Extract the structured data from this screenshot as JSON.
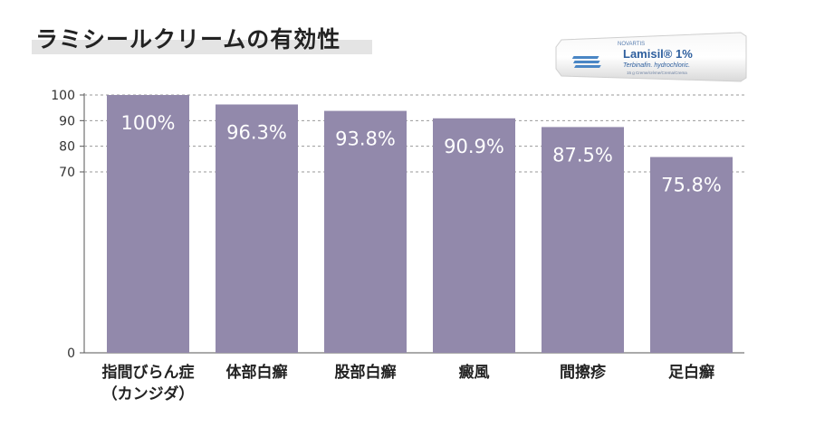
{
  "title": "ラミシールクリームの有効性",
  "product": {
    "brand": "NOVARTIS",
    "name": "Lamisil® 1%",
    "subtitle": "Terbinafin. hydrochloric.",
    "fineprint": "15 g Creme/crème/Crema/Crema"
  },
  "chart_data": {
    "type": "bar",
    "categories": [
      "指間びらん症\n（カンジダ）",
      "体部白癬",
      "股部白癬",
      "癜風",
      "間擦疹",
      "足白癬"
    ],
    "values": [
      100,
      96.3,
      93.8,
      90.9,
      87.5,
      75.8
    ],
    "data_labels": [
      "100%",
      "96.3%",
      "93.8%",
      "90.9%",
      "87.5%",
      "75.8%"
    ],
    "y_ticks": [
      0,
      70,
      80,
      90,
      100
    ],
    "ylim": [
      0,
      100
    ],
    "grid": true,
    "bar_color": "#9289ab"
  }
}
